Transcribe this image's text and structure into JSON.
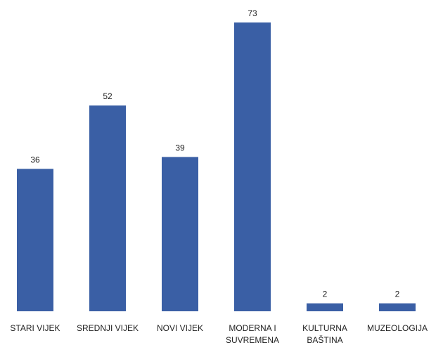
{
  "chart_data": {
    "type": "bar",
    "categories": [
      [
        "STARI VIJEK"
      ],
      [
        "SREDNJI VIJEK"
      ],
      [
        "NOVI VIJEK"
      ],
      [
        "MODERNA I",
        "SUVREMENA"
      ],
      [
        "KULTURNA",
        "BAŠTINA"
      ],
      [
        "MUZEOLOGIJA"
      ]
    ],
    "values": [
      36,
      52,
      39,
      73,
      2,
      2
    ],
    "bar_color": "#3a5fa5",
    "ylim": [
      0,
      73
    ],
    "grid": false,
    "legend": "none"
  }
}
